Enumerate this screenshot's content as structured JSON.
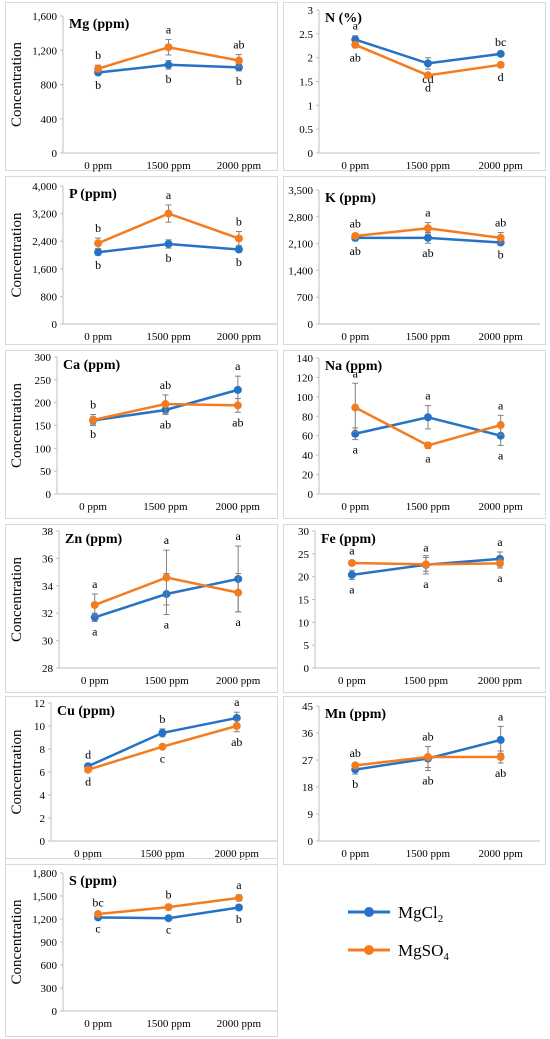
{
  "colors": {
    "MgCl2": "#2473c6",
    "MgSO4": "#f47c20"
  },
  "legend": {
    "items": [
      {
        "key": "MgCl2",
        "base": "MgCl",
        "sub": "2"
      },
      {
        "key": "MgSO4",
        "base": "MgSO",
        "sub": "4"
      }
    ]
  },
  "chart_data": [
    {
      "type": "line",
      "title": "Mg (ppm)",
      "ylabel": "Concentration",
      "categories": [
        "0 ppm",
        "1500 ppm",
        "2000 ppm"
      ],
      "ylim": [
        0,
        1600
      ],
      "yticks": [
        0,
        400,
        800,
        1200,
        1600
      ],
      "ytick_labels": [
        "0",
        "400",
        "800",
        "1,200",
        "1,600"
      ],
      "series": [
        {
          "name": "MgCl2",
          "values": [
            940,
            1030,
            1000
          ],
          "errors": [
            30,
            50,
            40
          ],
          "letters": [
            "b",
            "b",
            "b"
          ]
        },
        {
          "name": "MgSO4",
          "values": [
            985,
            1235,
            1080
          ],
          "errors": [
            40,
            90,
            70
          ],
          "letters": [
            "b",
            "a",
            "ab"
          ]
        }
      ]
    },
    {
      "type": "line",
      "title": "N (%)",
      "ylabel": "",
      "categories": [
        "0 ppm",
        "1500 ppm",
        "2000 ppm"
      ],
      "ylim": [
        0,
        3
      ],
      "yticks": [
        0,
        0.5,
        1,
        1.5,
        2,
        2.5,
        3
      ],
      "ytick_labels": [
        "0",
        "0.5",
        "1",
        "1.5",
        "2",
        "2.5",
        "3"
      ],
      "series": [
        {
          "name": "MgCl2",
          "values": [
            2.38,
            1.88,
            2.08
          ],
          "errors": [
            0.08,
            0.12,
            0.04
          ],
          "letters": [
            "a",
            "cd",
            "bc"
          ]
        },
        {
          "name": "MgSO4",
          "values": [
            2.27,
            1.63,
            1.85
          ],
          "errors": [
            0.06,
            0.05,
            0.05
          ],
          "letters": [
            "ab",
            "d",
            "d"
          ]
        }
      ]
    },
    {
      "type": "line",
      "title": "P (ppm)",
      "ylabel": "Concentration",
      "categories": [
        "0 ppm",
        "1500 ppm",
        "2000 ppm"
      ],
      "ylim": [
        0,
        4000
      ],
      "yticks": [
        0,
        800,
        1600,
        2400,
        3200,
        4000
      ],
      "ytick_labels": [
        "0",
        "800",
        "1,600",
        "2,400",
        "3,200",
        "4,000"
      ],
      "series": [
        {
          "name": "MgCl2",
          "values": [
            2080,
            2320,
            2160
          ],
          "errors": [
            80,
            120,
            80
          ],
          "letters": [
            "b",
            "b",
            "b"
          ]
        },
        {
          "name": "MgSO4",
          "values": [
            2340,
            3200,
            2480
          ],
          "errors": [
            150,
            250,
            200
          ],
          "letters": [
            "b",
            "a",
            "b"
          ]
        }
      ]
    },
    {
      "type": "line",
      "title": "K (ppm)",
      "ylabel": "",
      "categories": [
        "0 ppm",
        "1500 ppm",
        "2000 ppm"
      ],
      "ylim": [
        0,
        3500
      ],
      "yticks": [
        0,
        700,
        1400,
        2100,
        2800,
        3500
      ],
      "ytick_labels": [
        "0",
        "700",
        "1,400",
        "2,100",
        "2,800",
        "3,500"
      ],
      "series": [
        {
          "name": "MgCl2",
          "values": [
            2250,
            2250,
            2130
          ],
          "errors": [
            80,
            140,
            60
          ],
          "letters": [
            "ab",
            "ab",
            "b"
          ]
        },
        {
          "name": "MgSO4",
          "values": [
            2300,
            2500,
            2250
          ],
          "errors": [
            60,
            150,
            140
          ],
          "letters": [
            "ab",
            "a",
            "ab"
          ]
        }
      ]
    },
    {
      "type": "line",
      "title": "Ca (ppm)",
      "ylabel": "Concentration",
      "categories": [
        "0 ppm",
        "1500 ppm",
        "2000 ppm"
      ],
      "ylim": [
        0,
        300
      ],
      "yticks": [
        0,
        50,
        100,
        150,
        200,
        250,
        300
      ],
      "ytick_labels": [
        "0",
        "50",
        "100",
        "150",
        "200",
        "250",
        "300"
      ],
      "series": [
        {
          "name": "MgCl2",
          "values": [
            161,
            184,
            228
          ],
          "errors": [
            8,
            10,
            30
          ],
          "letters": [
            "b",
            "ab",
            "a"
          ]
        },
        {
          "name": "MgSO4",
          "values": [
            162,
            197,
            194
          ],
          "errors": [
            12,
            20,
            15
          ],
          "letters": [
            "b",
            "ab",
            "ab"
          ]
        }
      ]
    },
    {
      "type": "line",
      "title": "Na (ppm)",
      "ylabel": "",
      "categories": [
        "0 ppm",
        "1500 ppm",
        "2000 ppm"
      ],
      "ylim": [
        0,
        140
      ],
      "yticks": [
        0,
        20,
        40,
        60,
        80,
        100,
        120,
        140
      ],
      "ytick_labels": [
        "0",
        "20",
        "40",
        "60",
        "80",
        "100",
        "120",
        "140"
      ],
      "series": [
        {
          "name": "MgCl2",
          "values": [
            62,
            79,
            60
          ],
          "errors": [
            6,
            12,
            10
          ],
          "letters": [
            "a",
            "a",
            "a"
          ]
        },
        {
          "name": "MgSO4",
          "values": [
            89,
            50,
            71
          ],
          "errors": [
            25,
            3,
            10
          ],
          "letters": [
            "a",
            "a",
            "a"
          ]
        }
      ]
    },
    {
      "type": "line",
      "title": "Zn (ppm)",
      "ylabel": "Concentration",
      "categories": [
        "0 ppm",
        "1500 ppm",
        "2000 ppm"
      ],
      "ylim": [
        28,
        38
      ],
      "yticks": [
        28,
        30,
        32,
        34,
        36,
        38
      ],
      "ytick_labels": [
        "28",
        "30",
        "32",
        "34",
        "36",
        "38"
      ],
      "series": [
        {
          "name": "MgCl2",
          "values": [
            31.7,
            33.4,
            34.5
          ],
          "errors": [
            0.3,
            1.5,
            2.4
          ],
          "letters": [
            "a",
            "a",
            "a"
          ]
        },
        {
          "name": "MgSO4",
          "values": [
            32.6,
            34.6,
            33.5
          ],
          "errors": [
            0.8,
            2.0,
            1.4
          ],
          "letters": [
            "a",
            "a",
            "a"
          ]
        }
      ]
    },
    {
      "type": "line",
      "title": "Fe (ppm)",
      "ylabel": "",
      "categories": [
        "0 ppm",
        "1500 ppm",
        "2000 ppm"
      ],
      "ylim": [
        0,
        30
      ],
      "yticks": [
        0,
        5,
        10,
        15,
        20,
        25,
        30
      ],
      "ytick_labels": [
        "0",
        "5",
        "10",
        "15",
        "20",
        "25",
        "30"
      ],
      "series": [
        {
          "name": "MgCl2",
          "values": [
            20.4,
            22.6,
            23.9
          ],
          "errors": [
            1.0,
            2.0,
            1.5
          ],
          "letters": [
            "a",
            "a",
            "a"
          ]
        },
        {
          "name": "MgSO4",
          "values": [
            23.0,
            22.7,
            22.9
          ],
          "errors": [
            0.5,
            1.5,
            1.0
          ],
          "letters": [
            "a",
            "a",
            "a"
          ]
        }
      ]
    },
    {
      "type": "line",
      "title": "Cu (ppm)",
      "ylabel": "Concentration",
      "categories": [
        "0 ppm",
        "1500 ppm",
        "2000 ppm"
      ],
      "ylim": [
        0,
        12
      ],
      "yticks": [
        0,
        2,
        4,
        6,
        8,
        10,
        12
      ],
      "ytick_labels": [
        "0",
        "2",
        "4",
        "6",
        "8",
        "10",
        "12"
      ],
      "series": [
        {
          "name": "MgCl2",
          "values": [
            6.5,
            9.4,
            10.7
          ],
          "errors": [
            0.15,
            0.35,
            0.5
          ],
          "letters": [
            "d",
            "b",
            "a"
          ]
        },
        {
          "name": "MgSO4",
          "values": [
            6.2,
            8.2,
            10.0
          ],
          "errors": [
            0.15,
            0.15,
            0.5
          ],
          "letters": [
            "d",
            "c",
            "ab"
          ]
        }
      ]
    },
    {
      "type": "line",
      "title": "Mn (ppm)",
      "ylabel": "",
      "categories": [
        "0 ppm",
        "1500 ppm",
        "2000 ppm"
      ],
      "ylim": [
        0,
        45
      ],
      "yticks": [
        0,
        9,
        18,
        27,
        36,
        45
      ],
      "ytick_labels": [
        "0",
        "9",
        "18",
        "27",
        "36",
        "45"
      ],
      "series": [
        {
          "name": "MgCl2",
          "values": [
            23.8,
            27.5,
            33.7
          ],
          "errors": [
            1.5,
            4.0,
            4.5
          ],
          "letters": [
            "b",
            "ab",
            "a"
          ]
        },
        {
          "name": "MgSO4",
          "values": [
            25.2,
            28.0,
            28.0
          ],
          "errors": [
            0.8,
            3.5,
            2.0
          ],
          "letters": [
            "ab",
            "ab",
            "ab"
          ]
        }
      ]
    },
    {
      "type": "line",
      "title": "S (ppm)",
      "ylabel": "Concentration",
      "categories": [
        "0 ppm",
        "1500 ppm",
        "2000 ppm"
      ],
      "ylim": [
        0,
        1800
      ],
      "yticks": [
        0,
        300,
        600,
        900,
        1200,
        1500,
        1800
      ],
      "ytick_labels": [
        "0",
        "300",
        "600",
        "900",
        "1,200",
        "1,500",
        "1,800"
      ],
      "series": [
        {
          "name": "MgCl2",
          "values": [
            1220,
            1210,
            1350
          ],
          "errors": [
            15,
            15,
            20
          ],
          "letters": [
            "c",
            "c",
            "b"
          ]
        },
        {
          "name": "MgSO4",
          "values": [
            1265,
            1355,
            1475
          ],
          "errors": [
            20,
            35,
            40
          ],
          "letters": [
            "bc",
            "b",
            "a"
          ]
        }
      ]
    }
  ]
}
